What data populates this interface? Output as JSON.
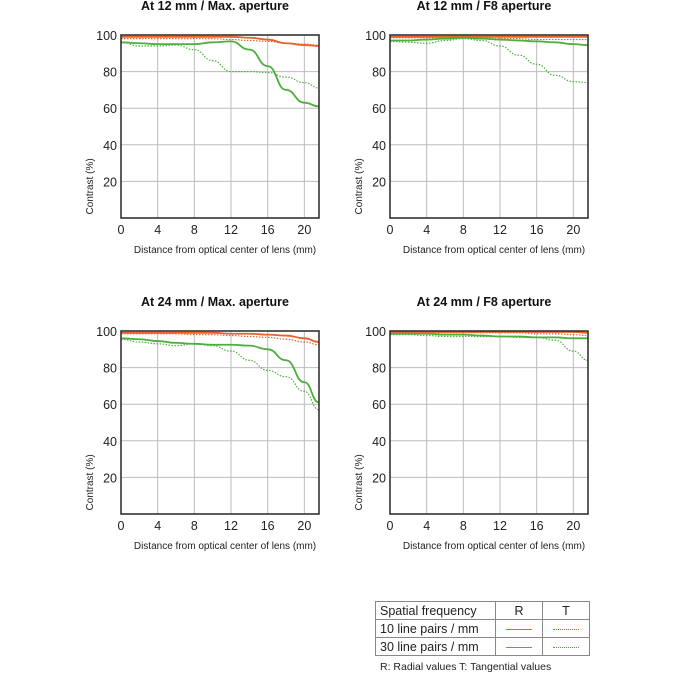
{
  "chart_data": [
    {
      "type": "line",
      "title": "At 12 mm / Max. aperture",
      "xlabel": "Distance from optical center of lens (mm)",
      "ylabel": "Contrast (%)",
      "xticks": [
        0,
        4,
        8,
        12,
        16,
        20
      ],
      "yticks": [
        20,
        40,
        60,
        80,
        100
      ],
      "xlim": [
        0,
        21.6
      ],
      "ylim": [
        0,
        100
      ],
      "grid": true,
      "x": [
        0,
        2,
        4,
        6,
        8,
        10,
        12,
        14,
        16,
        18,
        20,
        21.6
      ],
      "series": [
        {
          "name": "10 lp/mm R",
          "values": [
            99,
            99,
            99,
            99,
            99,
            99,
            99,
            98.5,
            97.5,
            95.5,
            94.5,
            94
          ]
        },
        {
          "name": "10 lp/mm T",
          "values": [
            98,
            98,
            98,
            98,
            98,
            98,
            97.5,
            97,
            96.5,
            95.5,
            95,
            94.5
          ]
        },
        {
          "name": "30 lp/mm R",
          "values": [
            96,
            95.5,
            95,
            95,
            95,
            96,
            96.5,
            92,
            83,
            70,
            63,
            61
          ]
        },
        {
          "name": "30 lp/mm T",
          "values": [
            96,
            94,
            94,
            94.5,
            92,
            86,
            80,
            80,
            79.5,
            77,
            74,
            71
          ]
        }
      ]
    },
    {
      "type": "line",
      "title": "At 12 mm / F8 aperture",
      "xlabel": "Distance from optical center of lens (mm)",
      "ylabel": "Contrast (%)",
      "xticks": [
        0,
        4,
        8,
        12,
        16,
        20
      ],
      "yticks": [
        20,
        40,
        60,
        80,
        100
      ],
      "xlim": [
        0,
        21.6
      ],
      "ylim": [
        0,
        100
      ],
      "grid": true,
      "x": [
        0,
        2,
        4,
        6,
        8,
        10,
        12,
        14,
        16,
        18,
        20,
        21.6
      ],
      "series": [
        {
          "name": "10 lp/mm R",
          "values": [
            99,
            99,
            99,
            99,
            99,
            99,
            99,
            99,
            99,
            99,
            99,
            99
          ]
        },
        {
          "name": "10 lp/mm T",
          "values": [
            98.5,
            98.5,
            98.5,
            98.5,
            98.5,
            98.5,
            98,
            98,
            97.5,
            97.5,
            97.5,
            97.5
          ]
        },
        {
          "name": "30 lp/mm R",
          "values": [
            97,
            97,
            97.5,
            98,
            98.5,
            98,
            97.5,
            97,
            96.5,
            96,
            95,
            94.5
          ]
        },
        {
          "name": "30 lp/mm T",
          "values": [
            96.5,
            96,
            95.5,
            97,
            98,
            97,
            94,
            89,
            84,
            78,
            74.5,
            74
          ]
        }
      ]
    },
    {
      "type": "line",
      "title": "At 24 mm / Max. aperture",
      "xlabel": "Distance from optical center of lens (mm)",
      "ylabel": "Contrast (%)",
      "xticks": [
        0,
        4,
        8,
        12,
        16,
        20
      ],
      "yticks": [
        20,
        40,
        60,
        80,
        100
      ],
      "xlim": [
        0,
        21.6
      ],
      "ylim": [
        0,
        100
      ],
      "grid": true,
      "x": [
        0,
        2,
        4,
        6,
        8,
        10,
        12,
        14,
        16,
        18,
        20,
        21.6
      ],
      "series": [
        {
          "name": "10 lp/mm R",
          "values": [
            99,
            99,
            99,
            99,
            99,
            99,
            98.5,
            98.5,
            98,
            97.5,
            96,
            94
          ]
        },
        {
          "name": "10 lp/mm T",
          "values": [
            98.5,
            98.5,
            98.5,
            98.5,
            98,
            98,
            97.5,
            97,
            96.5,
            95.5,
            94,
            92.5
          ]
        },
        {
          "name": "30 lp/mm R",
          "values": [
            96,
            95.5,
            94.5,
            93.5,
            93,
            92.5,
            92.5,
            92,
            90,
            84,
            72,
            61
          ]
        },
        {
          "name": "30 lp/mm T",
          "values": [
            95.5,
            94,
            93,
            92,
            93,
            92,
            89,
            84,
            78.5,
            75,
            67,
            57
          ]
        }
      ]
    },
    {
      "type": "line",
      "title": "At 24 mm / F8 aperture",
      "xlabel": "Distance from optical center of lens (mm)",
      "ylabel": "Contrast (%)",
      "xticks": [
        0,
        4,
        8,
        12,
        16,
        20
      ],
      "yticks": [
        20,
        40,
        60,
        80,
        100
      ],
      "xlim": [
        0,
        21.6
      ],
      "ylim": [
        0,
        100
      ],
      "grid": true,
      "x": [
        0,
        2,
        4,
        6,
        8,
        10,
        12,
        14,
        16,
        18,
        20,
        21.6
      ],
      "series": [
        {
          "name": "10 lp/mm R",
          "values": [
            99.5,
            99.5,
            99.5,
            99.5,
            99.5,
            99.5,
            99.5,
            99.5,
            99.5,
            99.5,
            99.5,
            99
          ]
        },
        {
          "name": "10 lp/mm T",
          "values": [
            99,
            99,
            99,
            99,
            99,
            99,
            99,
            99,
            98.5,
            98.5,
            98,
            97.5
          ]
        },
        {
          "name": "30 lp/mm R",
          "values": [
            98.5,
            98.5,
            98.5,
            98,
            98,
            97.5,
            97,
            97,
            96.5,
            96.5,
            96,
            96
          ]
        },
        {
          "name": "30 lp/mm T",
          "values": [
            98,
            98,
            97.5,
            97,
            97,
            97,
            97,
            96.5,
            96.5,
            95,
            89,
            84
          ]
        }
      ]
    }
  ],
  "legend": {
    "header": "Spatial frequency",
    "col_r": "R",
    "col_t": "T",
    "rows": [
      {
        "label": "10 line pairs / mm",
        "color": "#e8622c"
      },
      {
        "label": "30 line pairs / mm",
        "color": "#4caf3e"
      }
    ],
    "note": "R: Radial values  T: Tangential values"
  },
  "colors": {
    "line_10": "#e8622c",
    "line_30": "#4caf3e",
    "grid": "#bbbbbb",
    "axis": "#333333"
  }
}
